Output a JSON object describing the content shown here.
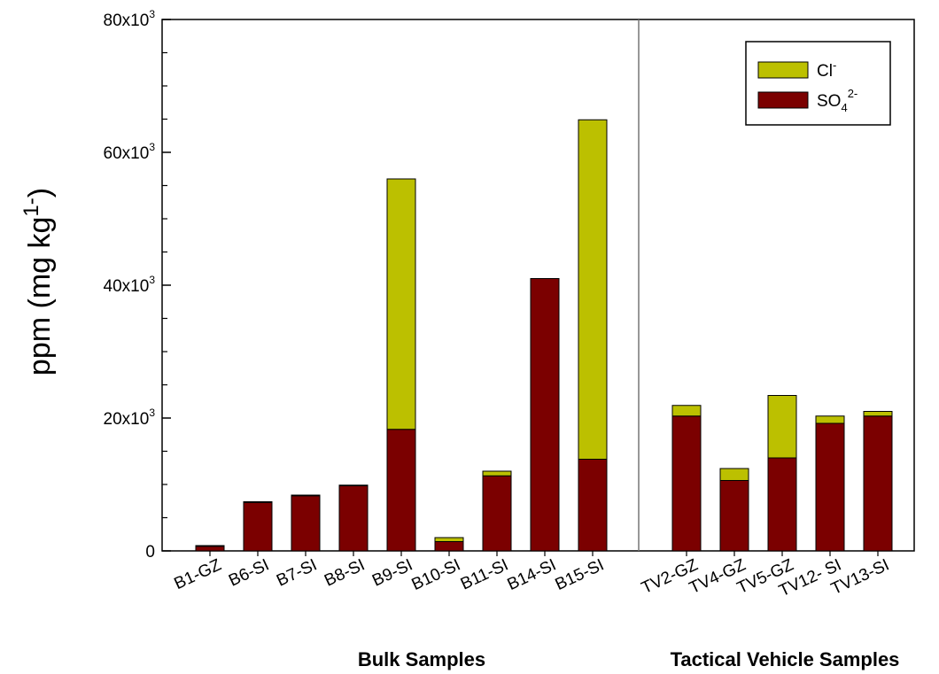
{
  "chart_data": {
    "type": "bar",
    "stacked": true,
    "ylabel": "ppm (mg kg",
    "ylabel_sup": "1-",
    "ylabel_close": ")",
    "ylim": [
      0,
      80000
    ],
    "yticks": [
      {
        "value": 0,
        "base": "0",
        "sup": ""
      },
      {
        "value": 20000,
        "base": "20x10",
        "sup": "3"
      },
      {
        "value": 40000,
        "base": "40x10",
        "sup": "3"
      },
      {
        "value": 60000,
        "base": "60x10",
        "sup": "3"
      },
      {
        "value": 80000,
        "base": "80x10",
        "sup": "3"
      }
    ],
    "groups": [
      {
        "label": "Bulk Samples",
        "categories": [
          "B1-GZ",
          "B6-SI",
          "B7-SI",
          "B8-SI",
          "B9-SI",
          "B10-SI",
          "B11-SI",
          "B14-SI",
          "B15-SI"
        ]
      },
      {
        "label": "Tactical Vehicle Samples",
        "categories": [
          "TV2-GZ",
          "TV4-GZ",
          "TV5-GZ",
          "TV12- SI",
          "TV13-SI"
        ]
      }
    ],
    "series": [
      {
        "name": "SO",
        "name_sub": "4",
        "name_sup": "2-",
        "color": "#7b0000",
        "values": [
          700,
          7300,
          8300,
          9800,
          18300,
          1400,
          11300,
          41000,
          13800,
          20300,
          10600,
          14000,
          19200,
          20300
        ]
      },
      {
        "name": "Cl",
        "name_sup": "-",
        "color": "#bcc000",
        "values": [
          100,
          100,
          100,
          100,
          37700,
          600,
          700,
          0,
          51100,
          1600,
          1800,
          9400,
          1100,
          700
        ]
      }
    ],
    "legend_position": "top-right",
    "grid": false
  }
}
